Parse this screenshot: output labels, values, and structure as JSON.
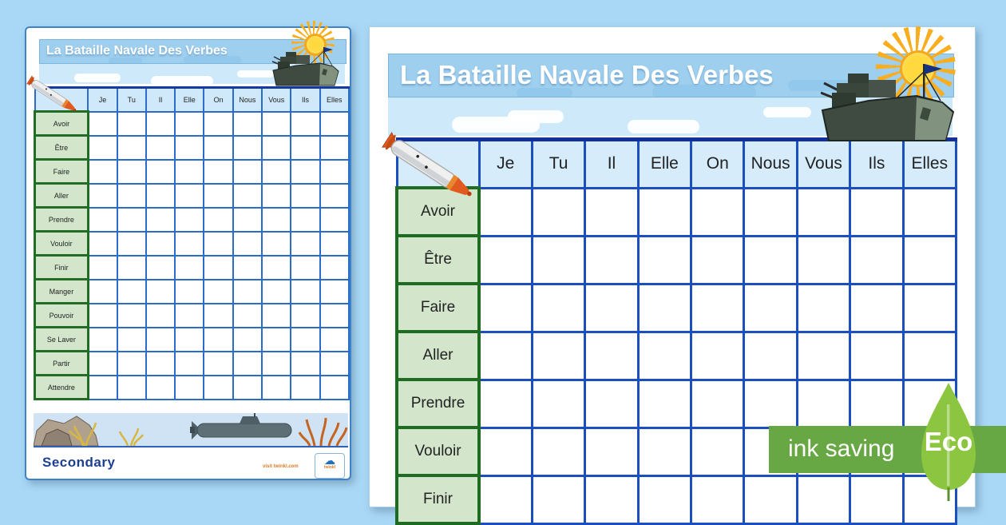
{
  "app": {
    "background_color": "#a9d8f6"
  },
  "worksheet": {
    "title": "La Bataille Navale Des Verbes",
    "pronouns": [
      "Je",
      "Tu",
      "Il",
      "Elle",
      "On",
      "Nous",
      "Vous",
      "Ils",
      "Elles"
    ],
    "verbs": [
      "Avoir",
      "Être",
      "Faire",
      "Aller",
      "Prendre",
      "Vouloir",
      "Finir",
      "Manger",
      "Pouvoir",
      "Se Laver",
      "Partir",
      "Attendre"
    ],
    "right_page_visible_verb_count": 7
  },
  "footer": {
    "phase_label": "Secondary",
    "website_label": "visit twinkl.com",
    "logo_word": "twinkl"
  },
  "eco_badge": {
    "ink_saving_label": "ink saving",
    "eco_label": "Eco",
    "band_color": "#68a844",
    "leaf_color": "#8cc53f"
  },
  "colors": {
    "grid_line_blue": "#1b4fc0",
    "grid_top_navy": "#12309a",
    "header_cell_blue": "#d6ecfb",
    "verb_cell_green": "#d3e6cc",
    "verb_border_green": "#1e6b22",
    "banner_strip_blue": "#9fcfee",
    "banner_sky_blue": "#cde9fa",
    "phase_text_blue": "#1d3f92"
  }
}
